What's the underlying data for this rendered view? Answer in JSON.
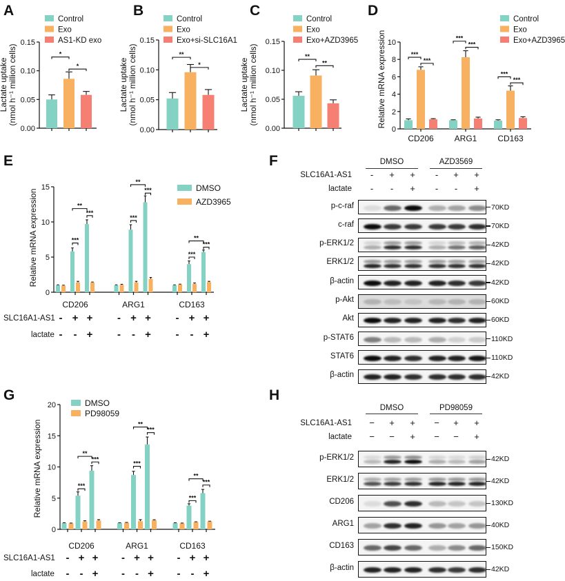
{
  "chart_data": [
    {
      "panel": "A",
      "type": "bar",
      "ylabel": [
        "Lactate uptake",
        "(nmol h⁻¹ million cells)"
      ],
      "ylim": [
        0,
        0.15
      ],
      "yticks": [
        0,
        0.05,
        0.1,
        0.15
      ],
      "ytick_labels": [
        "0.00",
        "0.05",
        "0.10",
        "0.15"
      ],
      "categories": [
        "Control",
        "Exo",
        "AS1-KD exo"
      ],
      "values": [
        0.05,
        0.086,
        0.058
      ],
      "errors": [
        0.008,
        0.012,
        0.006
      ],
      "colors": [
        "#84d2c3",
        "#f8b160",
        "#f47f72"
      ],
      "significance": [
        {
          "bars": [
            0,
            1
          ],
          "y": 0.124,
          "label": "*"
        },
        {
          "bars": [
            1,
            2
          ],
          "y": 0.103,
          "label": "*"
        }
      ]
    },
    {
      "panel": "B",
      "type": "bar",
      "ylabel": [
        "Lactate uptake",
        "(nmol h⁻¹ million cells)"
      ],
      "ylim": [
        0,
        0.15
      ],
      "yticks": [
        0,
        0.05,
        0.1,
        0.15
      ],
      "ytick_labels": [
        "0.00",
        "0.05",
        "0.10",
        "0.15"
      ],
      "categories": [
        "Control",
        "Exo",
        "Exo+si-SLC16A1"
      ],
      "values": [
        0.052,
        0.096,
        0.058
      ],
      "errors": [
        0.01,
        0.013,
        0.009
      ],
      "colors": [
        "#84d2c3",
        "#f8b160",
        "#f47f72"
      ],
      "significance": [
        {
          "bars": [
            0,
            1
          ],
          "y": 0.121,
          "label": "**"
        },
        {
          "bars": [
            1,
            2
          ],
          "y": 0.104,
          "label": "*"
        }
      ]
    },
    {
      "panel": "C",
      "type": "bar",
      "ylabel": [
        "Lactate uptake",
        "(nmol h⁻¹ million cells)"
      ],
      "ylim": [
        0,
        0.15
      ],
      "yticks": [
        0,
        0.05,
        0.1,
        0.15
      ],
      "ytick_labels": [
        "0.00",
        "0.05",
        "0.10",
        "0.15"
      ],
      "categories": [
        "Control",
        "Exo",
        "Exo+AZD3965"
      ],
      "values": [
        0.056,
        0.091,
        0.043
      ],
      "errors": [
        0.007,
        0.01,
        0.006
      ],
      "colors": [
        "#84d2c3",
        "#f8b160",
        "#f47f72"
      ],
      "significance": [
        {
          "bars": [
            0,
            1
          ],
          "y": 0.119,
          "label": "**"
        },
        {
          "bars": [
            1,
            2
          ],
          "y": 0.108,
          "label": "**"
        }
      ]
    },
    {
      "panel": "D",
      "type": "bar",
      "ylabel": [
        "Relative mRNA expression"
      ],
      "ylim": [
        0,
        10
      ],
      "yticks": [
        0,
        2,
        4,
        6,
        8,
        10
      ],
      "ytick_labels": [
        "0",
        "2",
        "4",
        "6",
        "8",
        "10"
      ],
      "categories": [
        "CD206",
        "ARG1",
        "CD163"
      ],
      "series": [
        {
          "name": "Control",
          "color": "#84d2c3",
          "values": [
            1.0,
            1.0,
            0.95
          ],
          "errors": [
            0.15,
            0.05,
            0.1
          ]
        },
        {
          "name": "Exo",
          "color": "#f8b160",
          "values": [
            6.8,
            8.25,
            4.4
          ],
          "errors": [
            0.35,
            0.75,
            0.55
          ]
        },
        {
          "name": "Exo+AZD3965",
          "color": "#f47f72",
          "values": [
            1.1,
            1.2,
            1.25
          ],
          "errors": [
            0.08,
            0.15,
            0.15
          ]
        }
      ],
      "significance": [
        {
          "bars": [
            0,
            1
          ],
          "y": 8.25,
          "label": "***"
        },
        {
          "bars": [
            1,
            2
          ],
          "y": 7.55,
          "label": "***"
        },
        {
          "bars": [
            3,
            4
          ],
          "y": 10.1,
          "label": "***"
        },
        {
          "bars": [
            4,
            5
          ],
          "y": 9.4,
          "label": "***"
        },
        {
          "bars": [
            6,
            7
          ],
          "y": 6.0,
          "label": "***"
        },
        {
          "bars": [
            7,
            8
          ],
          "y": 5.3,
          "label": "***"
        }
      ]
    },
    {
      "panel": "E",
      "type": "bar",
      "ylabel": [
        "Relative mRNA expression"
      ],
      "ylim": [
        0,
        15
      ],
      "yticks": [
        0,
        5,
        10,
        15
      ],
      "ytick_labels": [
        "0",
        "5",
        "10",
        "15"
      ],
      "categories": [
        "CD206",
        "ARG1",
        "CD163"
      ],
      "series": [
        {
          "name": "DMSO",
          "color": "#84d2c3",
          "values": [
            [
              1.0,
              5.8,
              9.7
            ],
            [
              1.0,
              8.9,
              12.8
            ],
            [
              1.0,
              4.0,
              5.7
            ]
          ],
          "errors": [
            [
              0.05,
              0.5,
              0.6
            ],
            [
              0.05,
              0.7,
              0.9
            ],
            [
              0.05,
              0.45,
              0.3
            ]
          ]
        },
        {
          "name": "AZD3965",
          "color": "#f8b160",
          "values": [
            [
              0.95,
              1.4,
              1.4
            ],
            [
              1.05,
              1.4,
              1.9
            ],
            [
              1.1,
              1.2,
              1.45
            ]
          ],
          "errors": [
            [
              0.05,
              0.15,
              0.05
            ],
            [
              0.08,
              0.15,
              0.2
            ],
            [
              0.05,
              0.12,
              0.1
            ]
          ]
        }
      ],
      "condition_rows": [
        {
          "label": "SLC16A1-AS1",
          "signs": [
            "-",
            "+",
            "+"
          ]
        },
        {
          "label": "lactate",
          "signs": [
            "-",
            "-",
            "+"
          ]
        }
      ],
      "significance": [
        {
          "bars": [
            2,
            3
          ],
          "y": 7.0,
          "label": "***"
        },
        {
          "bars": [
            4,
            5
          ],
          "y": 10.9,
          "label": "***"
        },
        {
          "bars": [
            2,
            4
          ],
          "y": 11.9,
          "label": "**"
        },
        {
          "bars": [
            8,
            9
          ],
          "y": 10.2,
          "label": "***"
        },
        {
          "bars": [
            10,
            11
          ],
          "y": 14.1,
          "label": "***"
        },
        {
          "bars": [
            8,
            10
          ],
          "y": 15.3,
          "label": "**"
        },
        {
          "bars": [
            14,
            15
          ],
          "y": 5.0,
          "label": "***"
        },
        {
          "bars": [
            16,
            17
          ],
          "y": 6.4,
          "label": "***"
        },
        {
          "bars": [
            14,
            16
          ],
          "y": 7.3,
          "label": "**"
        }
      ]
    },
    {
      "panel": "G",
      "type": "bar",
      "ylabel": [
        "Relative mRNA expression"
      ],
      "ylim": [
        0,
        20
      ],
      "yticks": [
        0,
        5,
        10,
        15,
        20
      ],
      "ytick_labels": [
        "0",
        "5",
        "10",
        "15",
        "20"
      ],
      "categories": [
        "CD206",
        "ARG1",
        "CD163"
      ],
      "series": [
        {
          "name": "DMSO",
          "color": "#84d2c3",
          "values": [
            [
              1.0,
              5.4,
              9.4
            ],
            [
              1.0,
              8.7,
              13.6
            ],
            [
              1.0,
              3.8,
              5.8
            ]
          ],
          "errors": [
            [
              0.05,
              0.6,
              0.8
            ],
            [
              0.05,
              0.6,
              1.2
            ],
            [
              0.05,
              0.3,
              0.6
            ]
          ]
        },
        {
          "name": "PD98059",
          "color": "#f8b160",
          "values": [
            [
              0.95,
              1.25,
              1.4
            ],
            [
              1.05,
              1.3,
              1.45
            ],
            [
              0.95,
              1.15,
              1.25
            ]
          ],
          "errors": [
            [
              0.05,
              0.12,
              0.15
            ],
            [
              0.05,
              0.25,
              0.08
            ],
            [
              0.05,
              0.05,
              0.05
            ]
          ]
        }
      ],
      "condition_rows": [
        {
          "label": "SLC16A1-AS1",
          "signs": [
            "-",
            "+",
            "+"
          ]
        },
        {
          "label": "lactate",
          "signs": [
            "-",
            "-",
            "+"
          ]
        }
      ],
      "significance": [
        {
          "bars": [
            2,
            3
          ],
          "y": 6.5,
          "label": "***"
        },
        {
          "bars": [
            4,
            5
          ],
          "y": 10.8,
          "label": "***"
        },
        {
          "bars": [
            2,
            4
          ],
          "y": 11.7,
          "label": "**"
        },
        {
          "bars": [
            8,
            9
          ],
          "y": 10.1,
          "label": "***"
        },
        {
          "bars": [
            10,
            11
          ],
          "y": 15.5,
          "label": "***"
        },
        {
          "bars": [
            8,
            10
          ],
          "y": 16.4,
          "label": "**"
        },
        {
          "bars": [
            14,
            15
          ],
          "y": 4.6,
          "label": "***"
        },
        {
          "bars": [
            16,
            17
          ],
          "y": 7.1,
          "label": "***"
        },
        {
          "bars": [
            14,
            16
          ],
          "y": 8.1,
          "label": "**"
        }
      ]
    }
  ],
  "blots": [
    {
      "panel": "F",
      "groups": [
        "DMSO",
        "AZD3569"
      ],
      "condition_rows": [
        {
          "label": "SLC16A1-AS1",
          "signs": [
            "-",
            "+",
            "+",
            "-",
            "+",
            "+"
          ]
        },
        {
          "label": "lactate",
          "signs": [
            "-",
            "-",
            "+",
            "-",
            "-",
            "+"
          ]
        }
      ],
      "rows": [
        {
          "label": "p-c-raf",
          "kd": "70KD",
          "bands": [
            0.1,
            0.6,
            1.0,
            0.3,
            0.35,
            0.45
          ]
        },
        {
          "label": "c-raf",
          "kd": "70KD",
          "bands": [
            1.0,
            0.8,
            0.8,
            0.8,
            0.8,
            0.85
          ]
        },
        {
          "label": "p-ERK1/2",
          "kd": "42KD",
          "doublet": true,
          "bands": [
            0.3,
            0.85,
            0.85,
            0.3,
            0.55,
            0.65
          ]
        },
        {
          "label": "ERK1/2",
          "kd": "42KD",
          "doublet": true,
          "bands": [
            0.9,
            0.85,
            0.85,
            0.85,
            0.85,
            0.85
          ]
        },
        {
          "label": "β-actin",
          "kd": "42KD",
          "bands": [
            1.0,
            0.9,
            0.9,
            0.9,
            0.85,
            0.8
          ]
        },
        {
          "label": "p-Akt",
          "kd": "60KD",
          "grey": true,
          "bands": [
            0.2,
            0.15,
            0.12,
            0.18,
            0.2,
            0.2
          ]
        },
        {
          "label": "Akt",
          "kd": "60KD",
          "bands": [
            1.0,
            0.9,
            0.9,
            0.9,
            0.85,
            0.9
          ]
        },
        {
          "label": "p-STAT6",
          "kd": "110KD",
          "bands": [
            0.5,
            0.25,
            0.25,
            0.3,
            0.15,
            0.18
          ]
        },
        {
          "label": "STAT6",
          "kd": "110KD",
          "bands": [
            1.0,
            0.9,
            0.85,
            0.9,
            0.9,
            0.95
          ]
        },
        {
          "label": "β-actin",
          "kd": "42KD",
          "bands": [
            0.9,
            0.9,
            0.85,
            0.85,
            0.85,
            0.85
          ]
        }
      ]
    },
    {
      "panel": "H",
      "groups": [
        "DMSO",
        "PD98059"
      ],
      "condition_rows": [
        {
          "label": "SLC16A1-AS1",
          "signs": [
            "−",
            "+",
            "+",
            "−",
            "+",
            "+"
          ]
        },
        {
          "label": "lactate",
          "signs": [
            "−",
            "−",
            "+",
            "−",
            "−",
            "+"
          ]
        }
      ],
      "rows": [
        {
          "label": "p-ERK1/2",
          "kd": "42KD",
          "doublet": true,
          "bands": [
            0.25,
            0.9,
            1.0,
            0.3,
            0.25,
            0.35
          ]
        },
        {
          "label": "ERK1/2",
          "kd": "42KD",
          "doublet": true,
          "bands": [
            0.7,
            0.8,
            0.85,
            0.9,
            0.9,
            0.9
          ]
        },
        {
          "label": "CD206",
          "kd": "130KD",
          "bands": [
            0.1,
            0.7,
            0.85,
            0.25,
            0.2,
            0.2
          ]
        },
        {
          "label": "ARG1",
          "kd": "40KD",
          "bands": [
            0.35,
            0.85,
            0.9,
            0.4,
            0.35,
            0.4
          ]
        },
        {
          "label": "CD163",
          "kd": "150KD",
          "bands": [
            0.6,
            0.75,
            0.6,
            0.3,
            0.45,
            0.6
          ]
        },
        {
          "label": "β-actin",
          "kd": "42KD",
          "bands": [
            0.9,
            0.9,
            0.9,
            0.85,
            0.8,
            0.85
          ]
        }
      ]
    }
  ]
}
